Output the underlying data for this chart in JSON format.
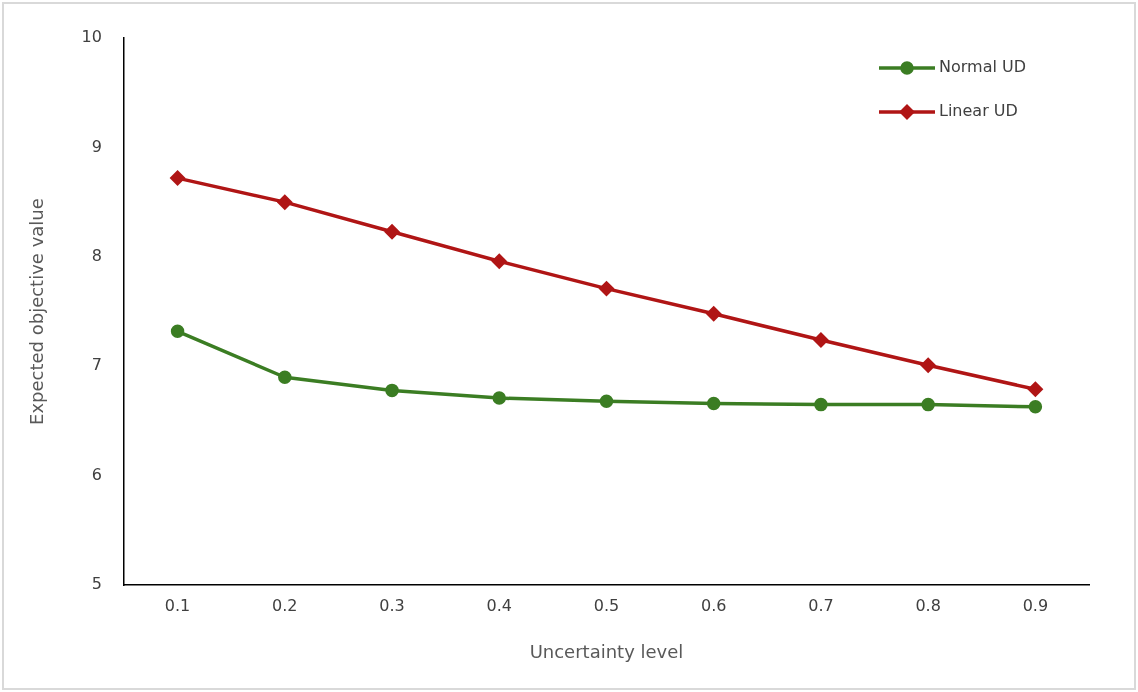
{
  "chart_data": {
    "type": "line",
    "xlabel": "Uncertainty level",
    "ylabel": "Expected objective value",
    "categories": [
      "0.1",
      "0.2",
      "0.3",
      "0.4",
      "0.5",
      "0.6",
      "0.7",
      "0.8",
      "0.9"
    ],
    "series": [
      {
        "name": "Normal UD",
        "color": "#3b7d23",
        "marker": "circle",
        "values": [
          7.32,
          6.9,
          6.78,
          6.71,
          6.68,
          6.66,
          6.65,
          6.65,
          6.63
        ]
      },
      {
        "name": "Linear UD",
        "color": "#b01515",
        "marker": "diamond",
        "values": [
          8.72,
          8.5,
          8.23,
          7.96,
          7.71,
          7.48,
          7.24,
          7.01,
          6.79
        ]
      }
    ],
    "ylim": [
      5,
      10
    ],
    "yticks": [
      5,
      6,
      7,
      8,
      9,
      10
    ],
    "grid": false,
    "legend": "top right",
    "line_style": "solid"
  }
}
